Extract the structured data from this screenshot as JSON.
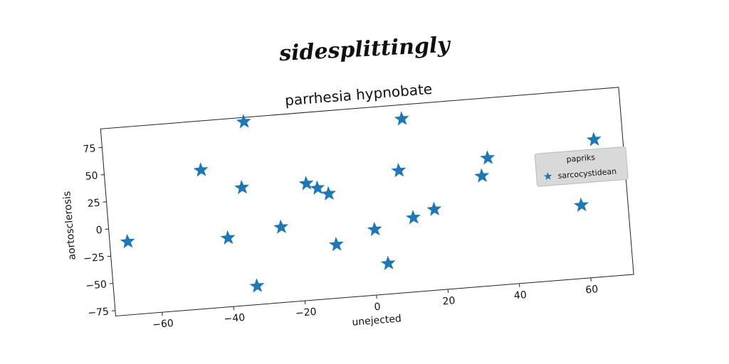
{
  "figure": {
    "suptitle": "sidesplittingly"
  },
  "chart_data": {
    "type": "scatter",
    "title": "parrhesia hypnobate",
    "xlabel": "unejected",
    "ylabel": "aortosclerosis",
    "xlim": [
      -73,
      72
    ],
    "ylim": [
      -80,
      92
    ],
    "xticks": [
      -60,
      -40,
      -20,
      0,
      20,
      40,
      60
    ],
    "yticks": [
      -75,
      -50,
      -25,
      0,
      25,
      50,
      75
    ],
    "grid": false,
    "legend": {
      "title": "papriks",
      "placement": "right"
    },
    "marker": "star",
    "series": [
      {
        "name": "sarcocystidean",
        "color": "#1f77b4",
        "points": [
          [
            -68,
            -13
          ],
          [
            -46,
            47
          ],
          [
            -35,
            28
          ],
          [
            -33,
            88
          ],
          [
            -40,
            -17
          ],
          [
            -25,
            -11
          ],
          [
            -33,
            -63
          ],
          [
            -17,
            27
          ],
          [
            -14,
            22
          ],
          [
            -11,
            16
          ],
          [
            -10,
            -31
          ],
          [
            1,
            -20
          ],
          [
            4,
            -52
          ],
          [
            9,
            32
          ],
          [
            11,
            79
          ],
          [
            12,
            -12
          ],
          [
            18,
            -6
          ],
          [
            32,
            21
          ],
          [
            34,
            37
          ],
          [
            59,
            -13
          ],
          [
            64,
            46
          ]
        ]
      }
    ]
  }
}
